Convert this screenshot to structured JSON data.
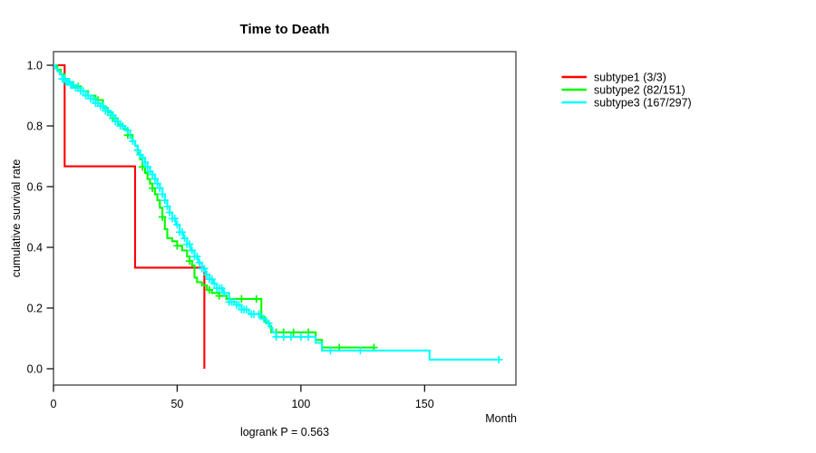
{
  "figure": {
    "background": "#ffffff"
  },
  "chart_data": {
    "type": "line",
    "subtype": "kaplan_meier_step",
    "title": "Time to Death",
    "xlabel": "Month",
    "ylabel": "cumulative survival rate",
    "annotation": "logrank P = 0.563",
    "xlim": [
      0,
      187
    ],
    "ylim": [
      0.0,
      1.0
    ],
    "x_ticks": [
      "0",
      "50",
      "100",
      "150"
    ],
    "y_ticks": [
      "0.0",
      "0.2",
      "0.4",
      "0.6",
      "0.8",
      "1.0"
    ],
    "grid": false,
    "legend_position": "right-outside-top",
    "series": [
      {
        "name": "subtype1",
        "legend_label": "subtype1 (3/3)",
        "color": "#ff0000",
        "steps": [
          [
            0,
            1.0
          ],
          [
            4.5,
            0.667
          ],
          [
            33,
            0.333
          ],
          [
            61,
            0.0
          ]
        ],
        "end_time": 61,
        "censor_times": []
      },
      {
        "name": "subtype2",
        "legend_label": "subtype2 (82/151)",
        "color": "#00ff00",
        "steps": [
          [
            0,
            1.0
          ],
          [
            1.5,
            0.985
          ],
          [
            3,
            0.97
          ],
          [
            4.5,
            0.955
          ],
          [
            6,
            0.945
          ],
          [
            8,
            0.93
          ],
          [
            11,
            0.915
          ],
          [
            14,
            0.9
          ],
          [
            17,
            0.885
          ],
          [
            20,
            0.86
          ],
          [
            22,
            0.845
          ],
          [
            24,
            0.825
          ],
          [
            26,
            0.805
          ],
          [
            28,
            0.79
          ],
          [
            30,
            0.77
          ],
          [
            32,
            0.75
          ],
          [
            33,
            0.735
          ],
          [
            34,
            0.71
          ],
          [
            35,
            0.69
          ],
          [
            36,
            0.665
          ],
          [
            37,
            0.645
          ],
          [
            38,
            0.625
          ],
          [
            39,
            0.61
          ],
          [
            40,
            0.595
          ],
          [
            41,
            0.575
          ],
          [
            42,
            0.555
          ],
          [
            43,
            0.53
          ],
          [
            44,
            0.5
          ],
          [
            45,
            0.46
          ],
          [
            46,
            0.43
          ],
          [
            48,
            0.42
          ],
          [
            50,
            0.405
          ],
          [
            52,
            0.39
          ],
          [
            54,
            0.37
          ],
          [
            55,
            0.355
          ],
          [
            56,
            0.34
          ],
          [
            57,
            0.3
          ],
          [
            58,
            0.285
          ],
          [
            60,
            0.275
          ],
          [
            62,
            0.26
          ],
          [
            64,
            0.25
          ],
          [
            67,
            0.24
          ],
          [
            70,
            0.23
          ],
          [
            84,
            0.17
          ],
          [
            85.5,
            0.155
          ],
          [
            87,
            0.14
          ],
          [
            88,
            0.12
          ],
          [
            106,
            0.095
          ],
          [
            108.5,
            0.07
          ]
        ],
        "end_time": 129.5,
        "censor_times": [
          10,
          18,
          24,
          30,
          36,
          40,
          44,
          50,
          55,
          63,
          67,
          71,
          76,
          82,
          90,
          93,
          97,
          103,
          115.5,
          129.5
        ]
      },
      {
        "name": "subtype3",
        "legend_label": "subtype3 (167/297)",
        "color": "#00ffff",
        "steps": [
          [
            0,
            1.0
          ],
          [
            0.8,
            0.99
          ],
          [
            1.6,
            0.98
          ],
          [
            2.5,
            0.97
          ],
          [
            3.5,
            0.955
          ],
          [
            5,
            0.945
          ],
          [
            7,
            0.935
          ],
          [
            9,
            0.925
          ],
          [
            11,
            0.915
          ],
          [
            13,
            0.9
          ],
          [
            15,
            0.89
          ],
          [
            17,
            0.875
          ],
          [
            19,
            0.865
          ],
          [
            21,
            0.85
          ],
          [
            23,
            0.835
          ],
          [
            25,
            0.815
          ],
          [
            27,
            0.8
          ],
          [
            29,
            0.785
          ],
          [
            31,
            0.76
          ],
          [
            32,
            0.75
          ],
          [
            33,
            0.735
          ],
          [
            34,
            0.72
          ],
          [
            35,
            0.705
          ],
          [
            36,
            0.695
          ],
          [
            37,
            0.68
          ],
          [
            38,
            0.665
          ],
          [
            39,
            0.65
          ],
          [
            40,
            0.64
          ],
          [
            41,
            0.625
          ],
          [
            42,
            0.61
          ],
          [
            43,
            0.595
          ],
          [
            44,
            0.575
          ],
          [
            45,
            0.555
          ],
          [
            46,
            0.535
          ],
          [
            47,
            0.515
          ],
          [
            48,
            0.495
          ],
          [
            49.5,
            0.475
          ],
          [
            51,
            0.45
          ],
          [
            52.5,
            0.43
          ],
          [
            54,
            0.41
          ],
          [
            55.5,
            0.39
          ],
          [
            57,
            0.37
          ],
          [
            58.5,
            0.35
          ],
          [
            60,
            0.33
          ],
          [
            61.5,
            0.31
          ],
          [
            63,
            0.295
          ],
          [
            64.5,
            0.28
          ],
          [
            66,
            0.265
          ],
          [
            68.5,
            0.25
          ],
          [
            71,
            0.22
          ],
          [
            74,
            0.21
          ],
          [
            76,
            0.195
          ],
          [
            79,
            0.18
          ],
          [
            83.5,
            0.165
          ],
          [
            86,
            0.15
          ],
          [
            87.5,
            0.135
          ],
          [
            88.5,
            0.12
          ],
          [
            90,
            0.105
          ],
          [
            106,
            0.085
          ],
          [
            108.5,
            0.06
          ],
          [
            152,
            0.03
          ]
        ],
        "end_time": 180,
        "censor_times": [
          3.5,
          4,
          4.5,
          5,
          5.5,
          6,
          6.5,
          7,
          7.5,
          8,
          9,
          10,
          11,
          12,
          13,
          14,
          15,
          16,
          17,
          18,
          19,
          20,
          21,
          22,
          23,
          24,
          25,
          26,
          27,
          28,
          30,
          32,
          34,
          35,
          36,
          37,
          38,
          39,
          40,
          41,
          42,
          43,
          44,
          45,
          46,
          47,
          48,
          49,
          50,
          51,
          52,
          53,
          54,
          55,
          56,
          57,
          58,
          59,
          60,
          61,
          62,
          63,
          64,
          65,
          66,
          67,
          68,
          69,
          71,
          72,
          73,
          74,
          75,
          76,
          77,
          78,
          80,
          81,
          83,
          85,
          87,
          90,
          93,
          96,
          100,
          103,
          112,
          124,
          180
        ]
      }
    ]
  }
}
